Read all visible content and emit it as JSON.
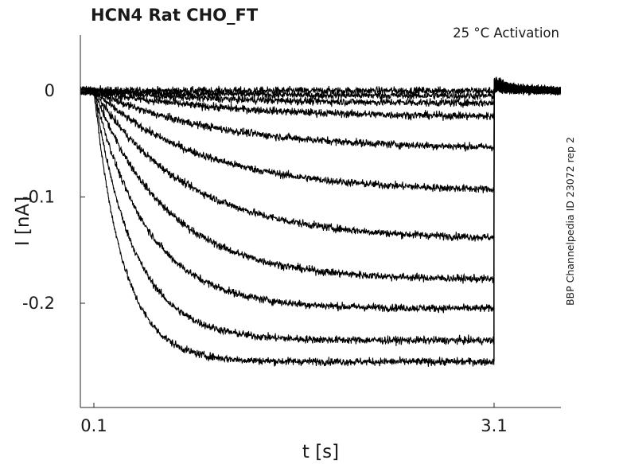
{
  "chart_data": {
    "type": "line",
    "title": "HCN4  Rat  CHO_FT",
    "annotation": "25 °C  Activation",
    "side_label": "BBP Channelpedia ID 23072 rep 2",
    "xlabel": "t [s]",
    "ylabel": "I [nA]",
    "xlim": [
      0.0,
      3.6
    ],
    "ylim": [
      -0.3,
      0.05
    ],
    "xticks": [
      0.1,
      3.1
    ],
    "xtick_labels": [
      "0.1",
      "3.1"
    ],
    "yticks": [
      0,
      -0.1,
      -0.2
    ],
    "ytick_labels": [
      "0",
      "-0.1",
      "-0.2"
    ],
    "grid": false,
    "legend": "none",
    "pulse": {
      "start": 0.1,
      "end": 3.1
    },
    "series": [
      {
        "steady_state": 0.0,
        "tau": 1.0,
        "noise": 0.0035
      },
      {
        "steady_state": -0.005,
        "tau": 1.0,
        "noise": 0.0035
      },
      {
        "steady_state": -0.012,
        "tau": 0.95,
        "noise": 0.0035
      },
      {
        "steady_state": -0.025,
        "tau": 0.95,
        "noise": 0.0035
      },
      {
        "steady_state": -0.055,
        "tau": 0.9,
        "noise": 0.0035
      },
      {
        "steady_state": -0.095,
        "tau": 0.8,
        "noise": 0.0035
      },
      {
        "steady_state": -0.14,
        "tau": 0.7,
        "noise": 0.0035
      },
      {
        "steady_state": -0.178,
        "tau": 0.55,
        "noise": 0.0035
      },
      {
        "steady_state": -0.205,
        "tau": 0.4,
        "noise": 0.0035
      },
      {
        "steady_state": -0.235,
        "tau": 0.3,
        "noise": 0.0035
      },
      {
        "steady_state": -0.255,
        "tau": 0.22,
        "noise": 0.0035
      }
    ]
  }
}
